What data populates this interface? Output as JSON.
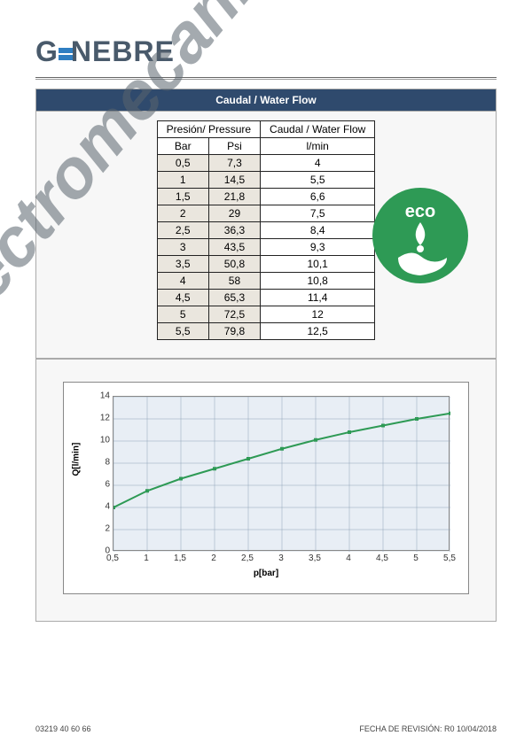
{
  "brand": {
    "name": "GENEBRE",
    "color_text": "#495a6b",
    "color_accent": "#2f7ec2"
  },
  "section": {
    "title": "Caudal / Water Flow",
    "header_bg": "#2f4a6d",
    "header_fg": "#ffffff"
  },
  "table": {
    "group_pressure": "Presión/ Pressure",
    "group_flow": "Caudal / Water Flow",
    "col_bar": "Bar",
    "col_psi": "Psi",
    "col_lmin": "l/min",
    "rows": [
      {
        "bar": "0,5",
        "psi": "7,3",
        "lmin": "4"
      },
      {
        "bar": "1",
        "psi": "14,5",
        "lmin": "5,5"
      },
      {
        "bar": "1,5",
        "psi": "21,8",
        "lmin": "6,6"
      },
      {
        "bar": "2",
        "psi": "29",
        "lmin": "7,5"
      },
      {
        "bar": "2,5",
        "psi": "36,3",
        "lmin": "8,4"
      },
      {
        "bar": "3",
        "psi": "43,5",
        "lmin": "9,3"
      },
      {
        "bar": "3,5",
        "psi": "50,8",
        "lmin": "10,1"
      },
      {
        "bar": "4",
        "psi": "58",
        "lmin": "10,8"
      },
      {
        "bar": "4,5",
        "psi": "65,3",
        "lmin": "11,4"
      },
      {
        "bar": "5",
        "psi": "72,5",
        "lmin": "12"
      },
      {
        "bar": "5,5",
        "psi": "79,8",
        "lmin": "12,5"
      }
    ],
    "shaded_bg": "#eae6de"
  },
  "eco": {
    "label": "eco",
    "bg": "#2e9a55",
    "fg": "#ffffff"
  },
  "chart": {
    "type": "line",
    "xlabel": "p[bar]",
    "ylabel": "Q[l/min]",
    "xmin": 0.5,
    "xmax": 5.5,
    "ymin": 0,
    "ymax": 14,
    "yticks": [
      0,
      2,
      4,
      6,
      8,
      10,
      12,
      14
    ],
    "xticks": [
      0.5,
      1,
      1.5,
      2,
      2.5,
      3,
      3.5,
      4,
      4.5,
      5,
      5.5
    ],
    "xtick_labels": [
      "0,5",
      "1",
      "1,5",
      "2",
      "2,5",
      "3",
      "3,5",
      "4",
      "4,5",
      "5",
      "5,5"
    ],
    "series_color": "#2e9a55",
    "plot_bg": "#e8eef5",
    "grid_color": "#8fa3b8",
    "marker": "square",
    "marker_size": 4,
    "line_width": 2,
    "points": [
      {
        "x": 0.5,
        "y": 4
      },
      {
        "x": 1,
        "y": 5.5
      },
      {
        "x": 1.5,
        "y": 6.6
      },
      {
        "x": 2,
        "y": 7.5
      },
      {
        "x": 2.5,
        "y": 8.4
      },
      {
        "x": 3,
        "y": 9.3
      },
      {
        "x": 3.5,
        "y": 10.1
      },
      {
        "x": 4,
        "y": 10.8
      },
      {
        "x": 4.5,
        "y": 11.4
      },
      {
        "x": 5,
        "y": 12
      },
      {
        "x": 5.5,
        "y": 12.5
      }
    ]
  },
  "watermark": "Electromecanica MM",
  "footer": {
    "left": "03219 40 60 66",
    "right": "FECHA DE REVISIÓN: R0 10/04/2018"
  }
}
